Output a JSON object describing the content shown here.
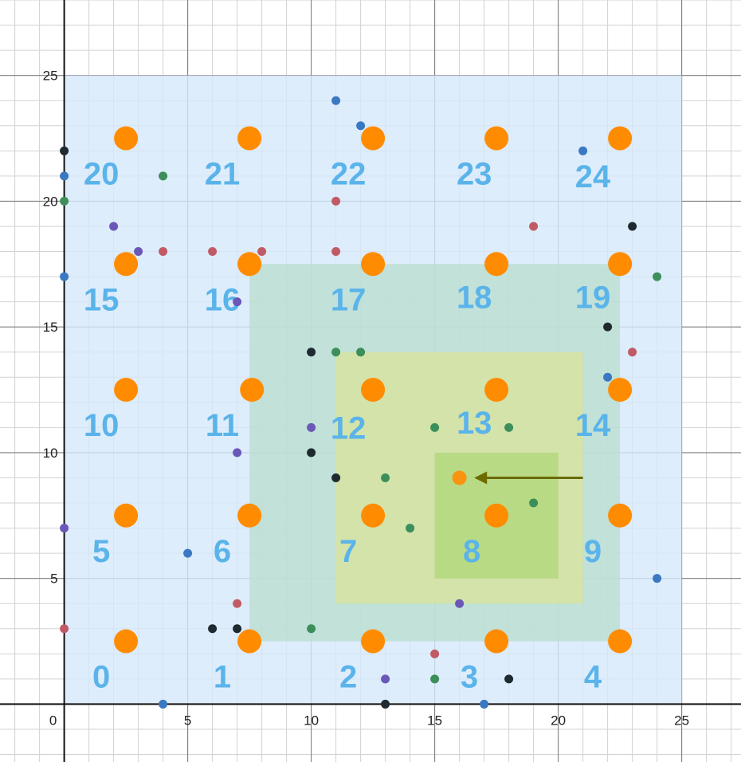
{
  "chart_data": {
    "type": "scatter",
    "title": "",
    "xlabel": "",
    "ylabel": "",
    "xlim": [
      -2.6,
      27.4
    ],
    "ylim": [
      -2.3,
      28.0
    ],
    "grid": true,
    "x_ticks": [
      "0",
      "5",
      "10",
      "15",
      "20",
      "25"
    ],
    "y_ticks": [
      "5",
      "10",
      "15",
      "20",
      "25"
    ],
    "regions": [
      {
        "name": "grid-area",
        "x": [
          0,
          25
        ],
        "y": [
          0,
          25
        ],
        "color": "#d6e9fb"
      },
      {
        "name": "outer-search",
        "x": [
          7.5,
          22.5
        ],
        "y": [
          2.5,
          17.5
        ],
        "color": "#b9ddd0"
      },
      {
        "name": "inner-search",
        "x": [
          11,
          21
        ],
        "y": [
          4,
          14
        ],
        "color": "#d8e39d"
      },
      {
        "name": "target-cell",
        "x": [
          15,
          20
        ],
        "y": [
          5,
          10
        ],
        "color": "#b2d77a"
      }
    ],
    "cell_labels": [
      {
        "text": "0",
        "x": 1.5,
        "y": 1.1
      },
      {
        "text": "1",
        "x": 6.4,
        "y": 1.1
      },
      {
        "text": "2",
        "x": 11.5,
        "y": 1.1
      },
      {
        "text": "3",
        "x": 16.4,
        "y": 1.1
      },
      {
        "text": "4",
        "x": 21.4,
        "y": 1.1
      },
      {
        "text": "5",
        "x": 1.5,
        "y": 6.1
      },
      {
        "text": "6",
        "x": 6.4,
        "y": 6.1
      },
      {
        "text": "7",
        "x": 11.5,
        "y": 6.1
      },
      {
        "text": "8",
        "x": 16.5,
        "y": 6.1
      },
      {
        "text": "9",
        "x": 21.4,
        "y": 6.1
      },
      {
        "text": "10",
        "x": 1.5,
        "y": 11.1
      },
      {
        "text": "11",
        "x": 6.4,
        "y": 11.1
      },
      {
        "text": "12",
        "x": 11.5,
        "y": 11.0
      },
      {
        "text": "13",
        "x": 16.6,
        "y": 11.2
      },
      {
        "text": "14",
        "x": 21.4,
        "y": 11.1
      },
      {
        "text": "15",
        "x": 1.5,
        "y": 16.1
      },
      {
        "text": "16",
        "x": 6.4,
        "y": 16.1
      },
      {
        "text": "17",
        "x": 11.5,
        "y": 16.1
      },
      {
        "text": "18",
        "x": 16.6,
        "y": 16.2
      },
      {
        "text": "19",
        "x": 21.4,
        "y": 16.2
      },
      {
        "text": "20",
        "x": 1.5,
        "y": 21.1
      },
      {
        "text": "21",
        "x": 6.4,
        "y": 21.1
      },
      {
        "text": "22",
        "x": 11.5,
        "y": 21.1
      },
      {
        "text": "23",
        "x": 16.6,
        "y": 21.1
      },
      {
        "text": "24",
        "x": 21.4,
        "y": 21.0
      }
    ],
    "centers": {
      "color": "#ff8c00",
      "points": [
        [
          2.5,
          2.5
        ],
        [
          7.5,
          2.5
        ],
        [
          12.5,
          2.5
        ],
        [
          17.5,
          2.5
        ],
        [
          22.5,
          2.5
        ],
        [
          2.5,
          7.5
        ],
        [
          7.5,
          7.5
        ],
        [
          12.5,
          7.5
        ],
        [
          17.5,
          7.5
        ],
        [
          22.5,
          7.5
        ],
        [
          2.5,
          12.5
        ],
        [
          7.6,
          12.5
        ],
        [
          12.5,
          12.5
        ],
        [
          17.5,
          12.5
        ],
        [
          22.5,
          12.5
        ],
        [
          2.5,
          17.5
        ],
        [
          7.5,
          17.5
        ],
        [
          12.5,
          17.5
        ],
        [
          17.5,
          17.5
        ],
        [
          22.5,
          17.5
        ],
        [
          2.5,
          22.5
        ],
        [
          7.5,
          22.5
        ],
        [
          12.5,
          22.5
        ],
        [
          17.5,
          22.5
        ],
        [
          22.5,
          22.5
        ]
      ]
    },
    "query_point": {
      "x": 16,
      "y": 9,
      "color": "#ff8c00"
    },
    "arrow": {
      "from": [
        21,
        9
      ],
      "to": [
        16.6,
        9
      ],
      "color": "#6b6b00"
    },
    "series": [
      {
        "color": "#3a78c2",
        "points": [
          [
            11,
            24
          ],
          [
            12,
            23
          ],
          [
            21,
            22
          ],
          [
            0,
            21
          ],
          [
            0,
            17
          ],
          [
            22,
            13
          ],
          [
            5,
            6
          ],
          [
            24,
            5
          ],
          [
            4,
            0
          ],
          [
            17,
            0
          ]
        ]
      },
      {
        "color": "#3c8f5b",
        "points": [
          [
            4,
            21
          ],
          [
            0,
            20
          ],
          [
            24,
            17
          ],
          [
            11,
            14
          ],
          [
            12,
            14
          ],
          [
            10,
            3
          ],
          [
            15,
            1
          ],
          [
            15,
            11
          ],
          [
            18,
            11
          ],
          [
            13,
            9
          ],
          [
            14,
            7
          ],
          [
            19,
            8
          ]
        ]
      },
      {
        "color": "#c05b65",
        "points": [
          [
            11,
            20
          ],
          [
            19,
            19
          ],
          [
            4,
            18
          ],
          [
            6,
            18
          ],
          [
            8,
            18
          ],
          [
            11,
            18
          ],
          [
            23,
            14
          ],
          [
            7,
            4
          ],
          [
            0,
            3
          ],
          [
            15,
            2
          ]
        ]
      },
      {
        "color": "#6a57b8",
        "points": [
          [
            2,
            19
          ],
          [
            3,
            18
          ],
          [
            7,
            16
          ],
          [
            10,
            11
          ],
          [
            7,
            10
          ],
          [
            0,
            7
          ],
          [
            13,
            1
          ],
          [
            16,
            4
          ]
        ]
      },
      {
        "color": "#1f2a30",
        "points": [
          [
            0,
            22
          ],
          [
            23,
            19
          ],
          [
            22,
            15
          ],
          [
            10,
            14
          ],
          [
            10,
            10
          ],
          [
            11,
            9
          ],
          [
            6,
            3
          ],
          [
            7,
            3
          ],
          [
            18,
            1
          ],
          [
            13,
            0
          ]
        ]
      }
    ]
  }
}
